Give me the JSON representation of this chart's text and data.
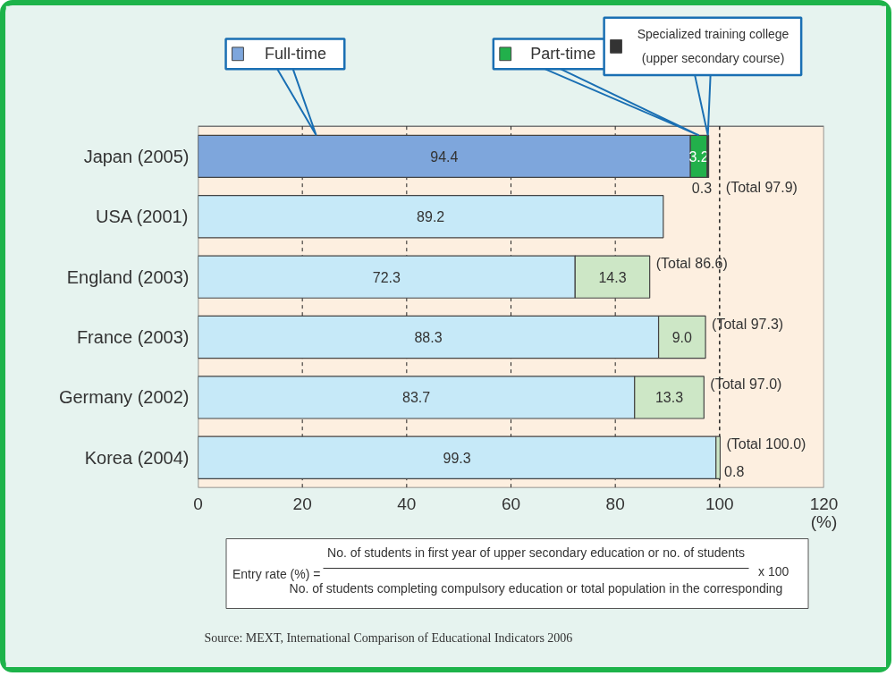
{
  "chart_data": {
    "type": "bar",
    "orientation": "horizontal",
    "stacked": true,
    "categories": [
      "Japan (2005)",
      "USA (2001)",
      "England (2003)",
      "France (2003)",
      "Germany (2002)",
      "Korea (2004)"
    ],
    "series": [
      {
        "name": "Full-time",
        "colors": [
          "#7ea6dc",
          "#c6e9f8",
          "#c6e9f8",
          "#c6e9f8",
          "#c6e9f8",
          "#c6e9f8"
        ],
        "values": [
          94.4,
          89.2,
          72.3,
          88.3,
          83.7,
          99.3
        ],
        "value_labels": [
          "94.4",
          "89.2",
          "72.3",
          "88.3",
          "83.7",
          "99.3"
        ]
      },
      {
        "name": "Part-time",
        "colors": [
          "#22b04b",
          "#cde7c6",
          "#cde7c6",
          "#cde7c6",
          "#cde7c6",
          "#cde7c6"
        ],
        "values": [
          3.2,
          null,
          14.3,
          9.0,
          13.3,
          0.8
        ],
        "value_labels": [
          "3.2",
          null,
          "14.3",
          "9.0",
          "13.3",
          "0.8"
        ]
      },
      {
        "name": "Specialized training college (upper secondary course)",
        "colors": [
          "#333333",
          null,
          null,
          null,
          null,
          null
        ],
        "values": [
          0.3,
          null,
          null,
          null,
          null,
          null
        ],
        "value_labels": [
          "0.3",
          null,
          null,
          null,
          null,
          null
        ]
      }
    ],
    "totals": [
      "(Total 97.9)",
      null,
      "(Total 86.6)",
      "(Total 97.3)",
      "(Total 97.0)",
      "(Total 100.0)"
    ],
    "xlim": [
      0,
      120
    ],
    "xticks": [
      0,
      20,
      40,
      60,
      80,
      100,
      120
    ],
    "xlabel": "(%)",
    "grid": "x",
    "legend": "top",
    "ref_lines": [
      {
        "axis": "x",
        "value": 100,
        "label": null,
        "line_style": "dashed"
      }
    ],
    "annotations": [
      "Entry rate (%) =",
      "No. of students in first year of upper secondary education or no. of students",
      "No. of students completing compulsory education or total population in the corresponding",
      "x 100",
      "Source: MEXT, International Comparison of Educational Indicators 2006"
    ]
  }
}
